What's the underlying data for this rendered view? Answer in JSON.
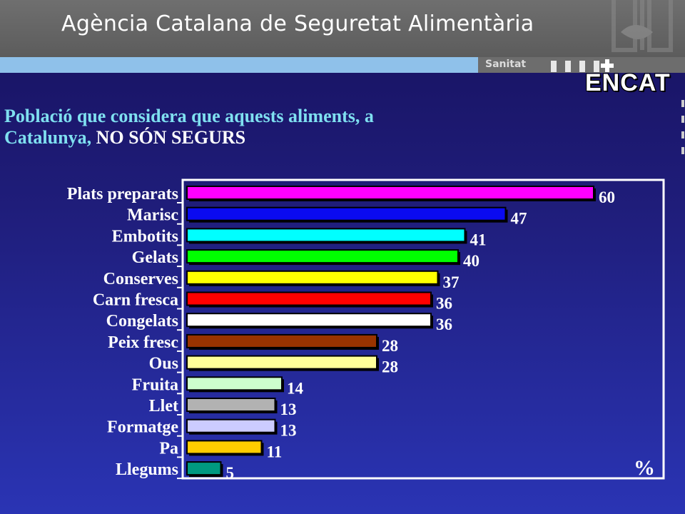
{
  "header": {
    "title": "Agència Catalana de Seguretat Alimentària",
    "department": "Sanitat",
    "badge": "ENCAT"
  },
  "chart_title": {
    "part1": "Població que considera que aquests aliments, a",
    "part2a": "Catalunya, ",
    "part2b": "NO SÓN SEGURS"
  },
  "chart_data": {
    "type": "bar",
    "orientation": "horizontal",
    "title": "Població que considera que aquests aliments, a Catalunya, NO SÓN SEGURS",
    "unit": "%",
    "categories": [
      "Plats preparats",
      "Marisc",
      "Embotits",
      "Gelats",
      "Conserves",
      "Carn fresca",
      "Congelats",
      "Peix fresc",
      "Ous",
      "Fruita",
      "Llet",
      "Formatge",
      "Pa",
      "Llegums"
    ],
    "values": [
      60,
      47,
      41,
      40,
      37,
      36,
      36,
      28,
      28,
      14,
      13,
      13,
      11,
      5
    ],
    "colors": [
      "#ff00ff",
      "#0a0af0",
      "#00ffff",
      "#00ff00",
      "#ffff00",
      "#ff0000",
      "#ffffff",
      "#993300",
      "#ffff99",
      "#ccffcc",
      "#b2b2b2",
      "#ccccff",
      "#ffcc00",
      "#009980"
    ],
    "xlim": [
      0,
      70
    ],
    "grid": false,
    "legend": "none"
  }
}
